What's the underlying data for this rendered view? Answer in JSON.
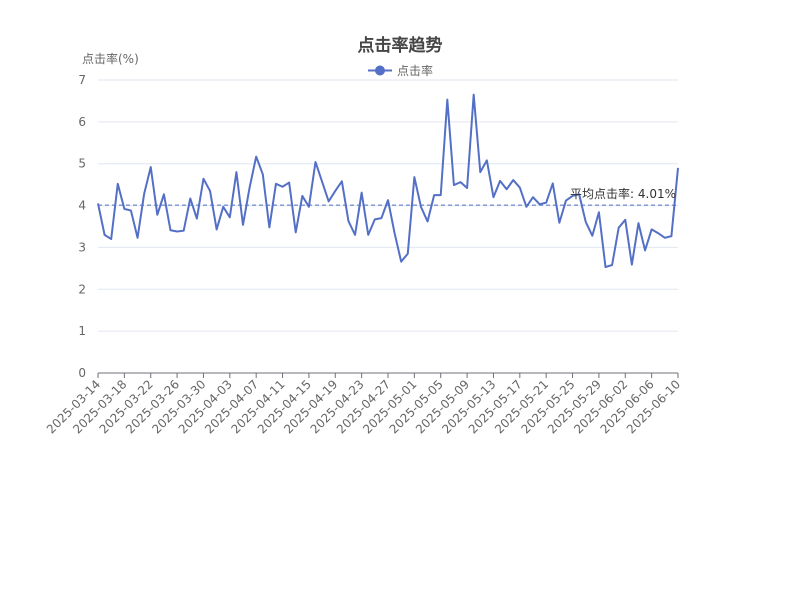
{
  "chart_data": {
    "type": "line",
    "title": "点击率趋势",
    "ylabel": "点击率(%)",
    "xlabel": "",
    "ylim": [
      0,
      7
    ],
    "yticks": [
      0,
      1,
      2,
      3,
      4,
      5,
      6,
      7
    ],
    "legend": {
      "position": "top-center",
      "entries": [
        "点击率"
      ]
    },
    "x_tick_labels": [
      "2025-03-14",
      "2025-03-18",
      "2025-03-22",
      "2025-03-26",
      "2025-03-30",
      "2025-04-03",
      "2025-04-07",
      "2025-04-11",
      "2025-04-15",
      "2025-04-19",
      "2025-04-23",
      "2025-04-27",
      "2025-05-01",
      "2025-05-05",
      "2025-05-09",
      "2025-05-13",
      "2025-05-17",
      "2025-05-21",
      "2025-05-25",
      "2025-05-29",
      "2025-06-02",
      "2025-06-06",
      "2025-06-10"
    ],
    "start_date": "2025-03-14",
    "series": [
      {
        "name": "点击率",
        "color": "#5470c6",
        "values": [
          4.05,
          3.3,
          3.2,
          4.52,
          3.92,
          3.88,
          3.23,
          4.28,
          4.92,
          3.78,
          4.27,
          3.41,
          3.38,
          3.4,
          4.17,
          3.69,
          4.64,
          4.35,
          3.43,
          3.97,
          3.72,
          4.8,
          3.54,
          4.43,
          5.17,
          4.75,
          3.48,
          4.52,
          4.45,
          4.55,
          3.36,
          4.23,
          3.97,
          5.04,
          4.57,
          4.1,
          4.35,
          4.58,
          3.63,
          3.3,
          4.31,
          3.3,
          3.67,
          3.7,
          4.13,
          3.34,
          2.66,
          2.85,
          4.68,
          3.97,
          3.62,
          4.25,
          4.25,
          6.53,
          4.49,
          4.56,
          4.42,
          6.65,
          4.8,
          5.08,
          4.2,
          4.59,
          4.39,
          4.61,
          4.43,
          3.97,
          4.2,
          4.03,
          4.07,
          4.53,
          3.59,
          4.12,
          4.23,
          4.27,
          3.61,
          3.28,
          3.84,
          2.53,
          2.58,
          3.47,
          3.66,
          2.59,
          3.58,
          2.93,
          3.43,
          3.34,
          3.23,
          3.27,
          4.9
        ]
      }
    ],
    "mark_line": {
      "type": "average",
      "value": 4.01,
      "label": "平均点击率: 4.01%"
    }
  }
}
